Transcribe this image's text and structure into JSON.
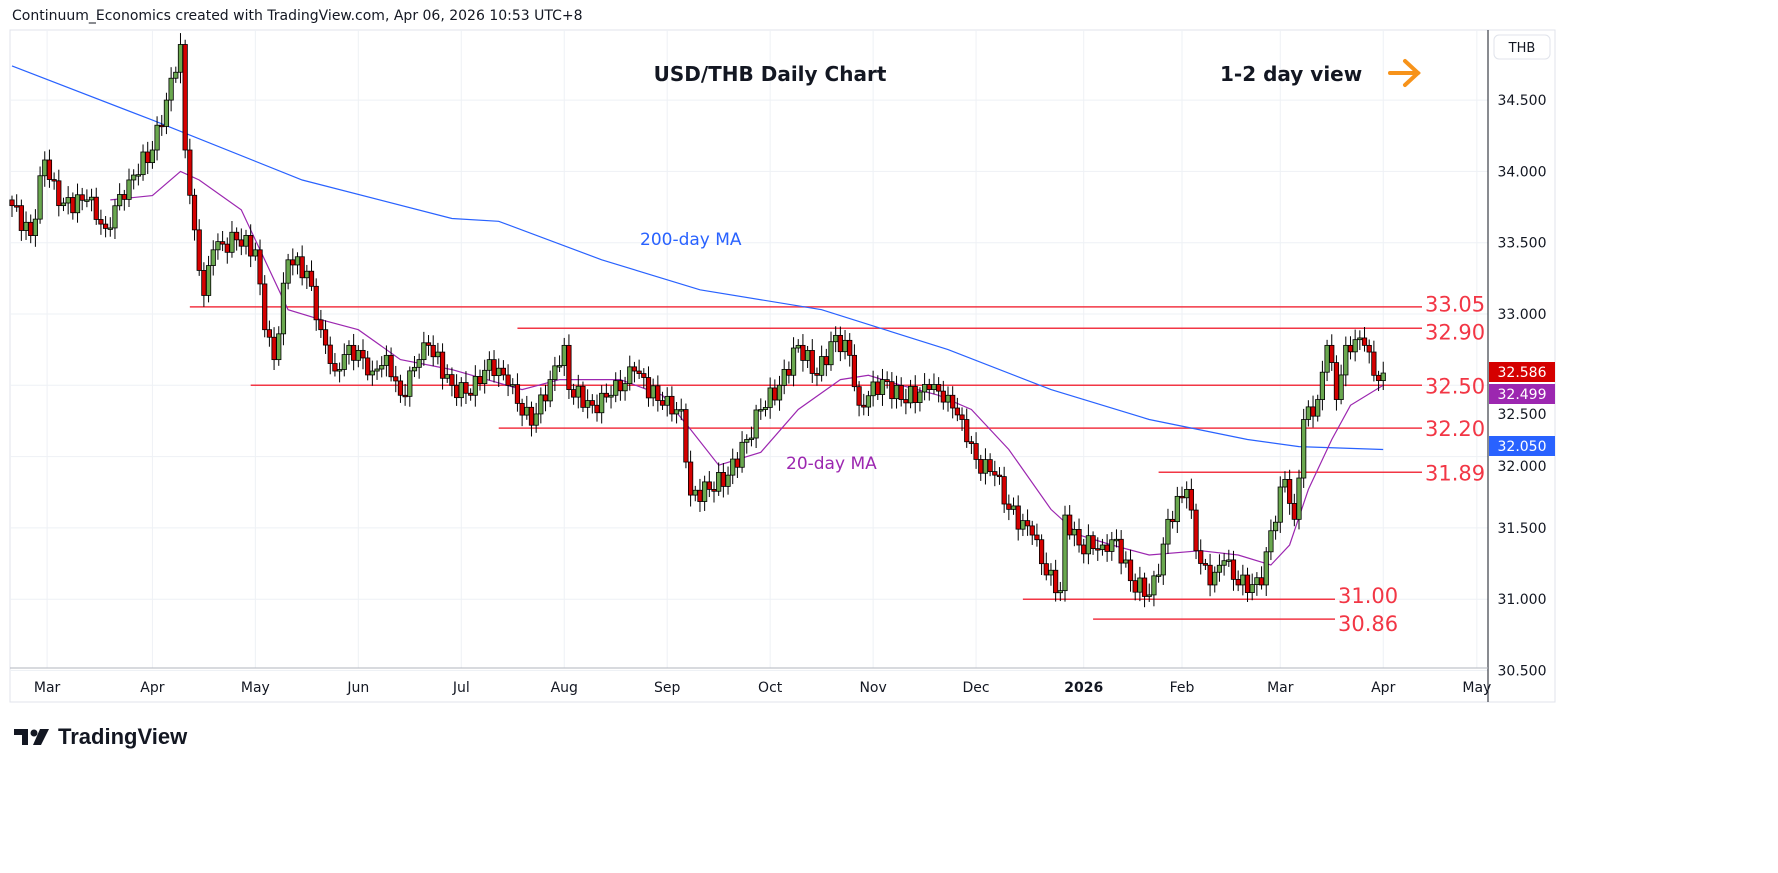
{
  "credit": "Continuum_Economics created with TradingView.com, Apr 06, 2026 10:53 UTC+8",
  "branding": "TradingView",
  "chart_data": {
    "type": "candlestick",
    "title": "USD/THB Daily Chart",
    "view_label": "1-2 day view",
    "view_icon": "arrow-right-icon",
    "currency": "THB",
    "ylim": [
      30.5,
      34.95
    ],
    "y_ticks": [
      "34.500",
      "34.000",
      "33.500",
      "33.000",
      "32.500",
      "32.000",
      "31.500",
      "31.000",
      "30.500"
    ],
    "y_tick_values": [
      34.5,
      34.0,
      33.5,
      33.0,
      32.5,
      32.0,
      31.5,
      31.0,
      30.5
    ],
    "x_unit": "trading day index (0 = 20 Feb 2025, 293 = 06 Apr 2026)",
    "x_ticks": [
      {
        "label": "Mar",
        "day": 7.5
      },
      {
        "label": "Apr",
        "day": 30
      },
      {
        "label": "May",
        "day": 52
      },
      {
        "label": "Jun",
        "day": 74
      },
      {
        "label": "Jul",
        "day": 96
      },
      {
        "label": "Aug",
        "day": 118
      },
      {
        "label": "Sep",
        "day": 140
      },
      {
        "label": "Oct",
        "day": 162
      },
      {
        "label": "Nov",
        "day": 184
      },
      {
        "label": "Dec",
        "day": 206
      },
      {
        "label": "2026",
        "day": 229,
        "bold": true
      },
      {
        "label": "Feb",
        "day": 250
      },
      {
        "label": "Mar",
        "day": 271
      },
      {
        "label": "Apr",
        "day": 293
      },
      {
        "label": "May",
        "day": 313
      }
    ],
    "close_keypoints": [
      [
        0,
        33.76
      ],
      [
        4,
        33.55
      ],
      [
        7,
        34.08
      ],
      [
        10,
        33.76
      ],
      [
        16,
        33.8
      ],
      [
        20,
        33.6
      ],
      [
        25,
        33.94
      ],
      [
        30,
        34.15
      ],
      [
        33,
        34.5
      ],
      [
        36,
        34.89
      ],
      [
        37,
        34.15
      ],
      [
        39,
        33.59
      ],
      [
        41,
        33.13
      ],
      [
        43,
        33.45
      ],
      [
        48,
        33.52
      ],
      [
        52,
        33.45
      ],
      [
        54,
        32.89
      ],
      [
        56,
        32.68
      ],
      [
        59,
        33.38
      ],
      [
        63,
        33.3
      ],
      [
        66,
        32.89
      ],
      [
        69,
        32.6
      ],
      [
        72,
        32.78
      ],
      [
        77,
        32.6
      ],
      [
        80,
        32.71
      ],
      [
        83,
        32.43
      ],
      [
        87,
        32.68
      ],
      [
        89,
        32.78
      ],
      [
        94,
        32.5
      ],
      [
        98,
        32.43
      ],
      [
        102,
        32.68
      ],
      [
        106,
        32.5
      ],
      [
        111,
        32.22
      ],
      [
        115,
        32.54
      ],
      [
        118,
        32.78
      ],
      [
        119,
        32.47
      ],
      [
        124,
        32.36
      ],
      [
        128,
        32.43
      ],
      [
        133,
        32.6
      ],
      [
        139,
        32.36
      ],
      [
        143,
        32.33
      ],
      [
        145,
        31.73
      ],
      [
        149,
        31.77
      ],
      [
        153,
        31.87
      ],
      [
        157,
        32.12
      ],
      [
        160,
        32.33
      ],
      [
        164,
        32.5
      ],
      [
        168,
        32.78
      ],
      [
        172,
        32.57
      ],
      [
        176,
        32.85
      ],
      [
        179,
        32.71
      ],
      [
        181,
        32.36
      ],
      [
        186,
        32.54
      ],
      [
        190,
        32.4
      ],
      [
        196,
        32.47
      ],
      [
        200,
        32.43
      ],
      [
        203,
        32.26
      ],
      [
        206,
        31.98
      ],
      [
        210,
        31.87
      ],
      [
        213,
        31.63
      ],
      [
        218,
        31.45
      ],
      [
        221,
        31.17
      ],
      [
        224,
        31.06
      ],
      [
        225,
        31.59
      ],
      [
        228,
        31.38
      ],
      [
        233,
        31.38
      ],
      [
        236,
        31.42
      ],
      [
        239,
        31.13
      ],
      [
        243,
        31.03
      ],
      [
        245,
        31.17
      ],
      [
        247,
        31.56
      ],
      [
        251,
        31.77
      ],
      [
        253,
        31.34
      ],
      [
        256,
        31.1
      ],
      [
        259,
        31.27
      ],
      [
        262,
        31.1
      ],
      [
        267,
        31.1
      ],
      [
        269,
        31.48
      ],
      [
        272,
        31.84
      ],
      [
        274,
        31.56
      ],
      [
        276,
        32.26
      ],
      [
        279,
        32.4
      ],
      [
        281,
        32.78
      ],
      [
        283,
        32.4
      ],
      [
        285,
        32.78
      ],
      [
        287,
        32.82
      ],
      [
        289,
        32.78
      ],
      [
        291,
        32.57
      ],
      [
        293,
        32.586
      ]
    ],
    "series": [
      {
        "name": "200-day MA",
        "label": "200-day MA",
        "color": "#2962ff",
        "last": "32.050",
        "points": [
          [
            0,
            34.74
          ],
          [
            30,
            34.36
          ],
          [
            62,
            33.94
          ],
          [
            94,
            33.67
          ],
          [
            104,
            33.65
          ],
          [
            126,
            33.38
          ],
          [
            147,
            33.17
          ],
          [
            173,
            33.03
          ],
          [
            200,
            32.75
          ],
          [
            222,
            32.47
          ],
          [
            243,
            32.26
          ],
          [
            264,
            32.12
          ],
          [
            275,
            32.07
          ],
          [
            293,
            32.05
          ]
        ]
      },
      {
        "name": "20-day MA",
        "label": "20-day MA",
        "color": "#9c27b0",
        "last": "32.499",
        "points": [
          [
            21,
            33.8
          ],
          [
            30,
            33.83
          ],
          [
            36,
            34.0
          ],
          [
            40,
            33.94
          ],
          [
            49,
            33.73
          ],
          [
            54,
            33.38
          ],
          [
            59,
            33.03
          ],
          [
            66,
            32.96
          ],
          [
            74,
            32.89
          ],
          [
            83,
            32.68
          ],
          [
            94,
            32.61
          ],
          [
            109,
            32.47
          ],
          [
            117,
            32.54
          ],
          [
            130,
            32.54
          ],
          [
            139,
            32.43
          ],
          [
            145,
            32.19
          ],
          [
            151,
            31.94
          ],
          [
            160,
            32.03
          ],
          [
            168,
            32.33
          ],
          [
            177,
            32.54
          ],
          [
            183,
            32.57
          ],
          [
            190,
            32.5
          ],
          [
            198,
            32.43
          ],
          [
            205,
            32.33
          ],
          [
            213,
            32.05
          ],
          [
            222,
            31.63
          ],
          [
            228,
            31.45
          ],
          [
            235,
            31.38
          ],
          [
            243,
            31.31
          ],
          [
            254,
            31.34
          ],
          [
            262,
            31.31
          ],
          [
            269,
            31.24
          ],
          [
            273,
            31.38
          ],
          [
            277,
            31.77
          ],
          [
            282,
            32.12
          ],
          [
            286,
            32.36
          ],
          [
            293,
            32.5
          ]
        ]
      }
    ],
    "last_price": "32.586",
    "levels": [
      {
        "value": 33.05,
        "label": "33.05",
        "from_day": 38
      },
      {
        "value": 32.9,
        "label": "32.90",
        "from_day": 108
      },
      {
        "value": 32.5,
        "label": "32.50",
        "from_day": 51
      },
      {
        "value": 32.2,
        "label": "32.20",
        "from_day": 104
      },
      {
        "value": 31.89,
        "label": "31.89",
        "from_day": 245
      },
      {
        "value": 31.0,
        "label": "31.00",
        "from_day": 216,
        "short": true
      },
      {
        "value": 30.86,
        "label": "30.86",
        "from_day": 231,
        "short": true
      }
    ],
    "colors": {
      "up": "#6aa84f",
      "down": "#d50000",
      "level": "#f23645",
      "accent": "#f7931a"
    }
  }
}
